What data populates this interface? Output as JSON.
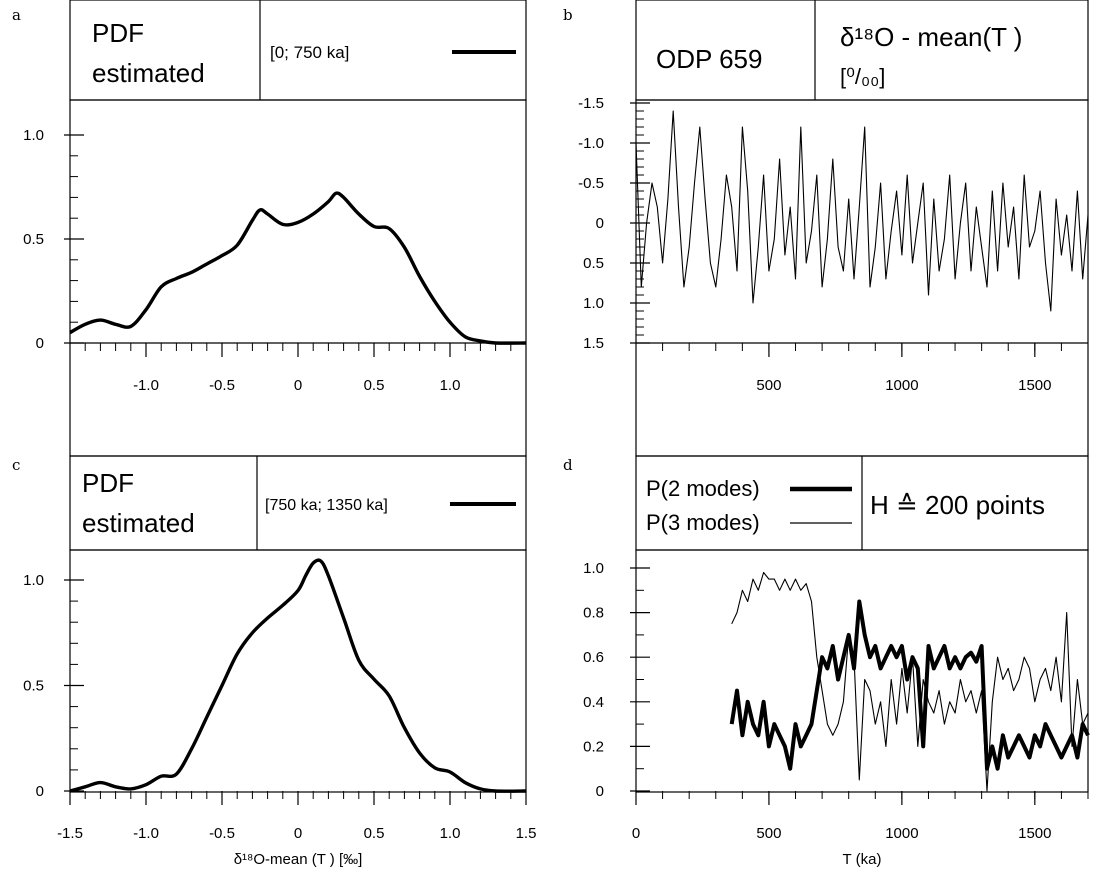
{
  "panels": [
    {
      "letter": "a",
      "header": {
        "line1": "PDF",
        "line2": "estimated",
        "legend": "[0; 750 ka]"
      }
    },
    {
      "letter": "b",
      "header": {
        "title": "ODP 659",
        "ylabel_line1": "δ¹⁸O - mean(T )",
        "ylabel_line2": "[⁰/₀₀]"
      }
    },
    {
      "letter": "c",
      "header": {
        "line1": "PDF",
        "line2": "estimated",
        "legend": "[750 ka; 1350 ka]"
      }
    },
    {
      "letter": "d",
      "header": {
        "legend1": "P(2 modes)",
        "legend2": "P(3 modes)",
        "note": "H ≙ 200 points"
      }
    }
  ],
  "x_label_bottom_left": "δ¹⁸O-mean (T ) [‰]",
  "x_label_bottom_right": "T (ka)",
  "chart_data": [
    {
      "panel": "a",
      "type": "line",
      "x": [
        -1.5,
        -1.4,
        -1.3,
        -1.2,
        -1.1,
        -1.0,
        -0.9,
        -0.8,
        -0.7,
        -0.6,
        -0.5,
        -0.4,
        -0.3,
        -0.25,
        -0.2,
        -0.1,
        0,
        0.1,
        0.2,
        0.25,
        0.3,
        0.4,
        0.5,
        0.6,
        0.7,
        0.8,
        0.9,
        1.0,
        1.1,
        1.2,
        1.3,
        1.5
      ],
      "y": [
        0.05,
        0.09,
        0.11,
        0.09,
        0.08,
        0.16,
        0.27,
        0.31,
        0.34,
        0.38,
        0.42,
        0.47,
        0.59,
        0.64,
        0.62,
        0.57,
        0.58,
        0.62,
        0.68,
        0.72,
        0.7,
        0.62,
        0.56,
        0.55,
        0.46,
        0.32,
        0.2,
        0.1,
        0.03,
        0.01,
        0.0,
        0.0
      ],
      "series_label": "[0; 750 ka]",
      "xlim": [
        -1.5,
        1.5
      ],
      "ylim": [
        0,
        1.0
      ],
      "xticks": [
        "-1.0",
        "-0.5",
        "0",
        "0.5",
        "1.0"
      ],
      "yticks": [
        "0",
        "0.5",
        "1.0"
      ]
    },
    {
      "panel": "b",
      "type": "line",
      "title": "ODP 659",
      "xlim": [
        0,
        1700
      ],
      "ylim": [
        1.5,
        -1.5
      ],
      "xticks": [
        "500",
        "1000",
        "1500"
      ],
      "yticks": [
        "-1.5",
        "-1.0",
        "-0.5",
        "0",
        "0.5",
        "1.0",
        "1.5"
      ],
      "x": [
        0,
        20,
        40,
        60,
        80,
        100,
        120,
        140,
        160,
        180,
        200,
        220,
        240,
        260,
        280,
        300,
        320,
        340,
        360,
        380,
        400,
        420,
        440,
        460,
        480,
        500,
        520,
        540,
        560,
        580,
        600,
        620,
        640,
        660,
        680,
        700,
        720,
        740,
        760,
        780,
        800,
        820,
        840,
        860,
        880,
        900,
        920,
        940,
        960,
        980,
        1000,
        1020,
        1040,
        1060,
        1080,
        1100,
        1120,
        1140,
        1160,
        1180,
        1200,
        1220,
        1240,
        1260,
        1280,
        1300,
        1320,
        1340,
        1360,
        1380,
        1400,
        1420,
        1440,
        1460,
        1480,
        1500,
        1520,
        1540,
        1560,
        1580,
        1600,
        1620,
        1640,
        1660,
        1680,
        1700
      ],
      "y": [
        -1.0,
        0.8,
        0.0,
        -0.5,
        -0.2,
        0.5,
        -0.3,
        -1.4,
        -0.2,
        0.8,
        0.3,
        -0.5,
        -1.2,
        -0.3,
        0.5,
        0.8,
        0.2,
        -0.6,
        -0.2,
        0.6,
        -1.2,
        -0.4,
        1.0,
        0.3,
        -0.6,
        0.6,
        0.2,
        -0.8,
        0.4,
        -0.2,
        0.7,
        -1.2,
        0.5,
        0.1,
        -0.6,
        0.8,
        0.2,
        -0.8,
        0.3,
        0.6,
        -0.3,
        0.7,
        -0.2,
        -1.2,
        0.8,
        0.3,
        -0.5,
        0.7,
        0.1,
        -0.4,
        0.4,
        -0.6,
        0.5,
        0.0,
        -0.5,
        0.9,
        -0.3,
        0.6,
        0.2,
        -0.6,
        0.7,
        0.0,
        -0.5,
        0.6,
        -0.2,
        0.3,
        0.8,
        -0.4,
        0.6,
        -0.5,
        0.3,
        -0.2,
        0.7,
        -0.6,
        0.3,
        0.1,
        -0.4,
        0.5,
        1.1,
        -0.3,
        0.4,
        -0.1,
        0.6,
        -0.4,
        0.7,
        -0.1
      ]
    },
    {
      "panel": "c",
      "type": "line",
      "x": [
        -1.5,
        -1.4,
        -1.3,
        -1.2,
        -1.1,
        -1.0,
        -0.9,
        -0.8,
        -0.7,
        -0.6,
        -0.5,
        -0.4,
        -0.3,
        -0.2,
        -0.1,
        0,
        0.05,
        0.1,
        0.15,
        0.2,
        0.3,
        0.4,
        0.5,
        0.6,
        0.7,
        0.8,
        0.9,
        1.0,
        1.1,
        1.2,
        1.3,
        1.5
      ],
      "y": [
        0.0,
        0.02,
        0.04,
        0.02,
        0.01,
        0.03,
        0.07,
        0.08,
        0.2,
        0.35,
        0.5,
        0.65,
        0.75,
        0.82,
        0.88,
        0.95,
        1.02,
        1.08,
        1.09,
        1.02,
        0.82,
        0.62,
        0.53,
        0.45,
        0.3,
        0.18,
        0.11,
        0.09,
        0.04,
        0.01,
        0.0,
        0.0
      ],
      "series_label": "[750 ka; 1350 ka]",
      "xlim": [
        -1.5,
        1.5
      ],
      "ylim": [
        0,
        1.0
      ],
      "xticks": [
        "-1.5",
        "-1.0",
        "-0.5",
        "0",
        "0.5",
        "1.0",
        "1.5"
      ],
      "yticks": [
        "0",
        "0.5",
        "1.0"
      ]
    },
    {
      "panel": "d",
      "type": "line",
      "xlim": [
        0,
        1700
      ],
      "ylim": [
        0,
        1.0
      ],
      "xticks": [
        "0",
        "500",
        "1000",
        "1500"
      ],
      "yticks": [
        "0",
        "0.2",
        "0.4",
        "0.6",
        "0.8",
        "1.0"
      ],
      "series": [
        {
          "name": "P(2 modes)",
          "x": [
            360,
            380,
            400,
            420,
            440,
            460,
            480,
            500,
            520,
            540,
            560,
            580,
            600,
            620,
            640,
            660,
            680,
            700,
            720,
            740,
            760,
            780,
            800,
            820,
            840,
            860,
            880,
            900,
            920,
            940,
            960,
            980,
            1000,
            1020,
            1040,
            1060,
            1080,
            1100,
            1120,
            1140,
            1160,
            1180,
            1200,
            1220,
            1240,
            1260,
            1280,
            1300,
            1320,
            1340,
            1360,
            1380,
            1400,
            1420,
            1440,
            1460,
            1480,
            1500,
            1520,
            1540,
            1560,
            1580,
            1600,
            1620,
            1640,
            1660,
            1680,
            1700
          ],
          "y": [
            0.3,
            0.45,
            0.25,
            0.4,
            0.3,
            0.25,
            0.4,
            0.2,
            0.3,
            0.25,
            0.2,
            0.1,
            0.3,
            0.2,
            0.25,
            0.3,
            0.45,
            0.6,
            0.55,
            0.65,
            0.5,
            0.6,
            0.7,
            0.55,
            0.85,
            0.7,
            0.6,
            0.65,
            0.55,
            0.6,
            0.65,
            0.6,
            0.65,
            0.5,
            0.6,
            0.55,
            0.2,
            0.65,
            0.55,
            0.6,
            0.65,
            0.55,
            0.6,
            0.55,
            0.6,
            0.62,
            0.58,
            0.65,
            0.1,
            0.2,
            0.1,
            0.25,
            0.15,
            0.2,
            0.25,
            0.2,
            0.15,
            0.25,
            0.2,
            0.3,
            0.25,
            0.2,
            0.15,
            0.2,
            0.25,
            0.15,
            0.3,
            0.25
          ]
        },
        {
          "name": "P(3 modes)",
          "x": [
            360,
            380,
            400,
            420,
            440,
            460,
            480,
            500,
            520,
            540,
            560,
            580,
            600,
            620,
            640,
            660,
            680,
            700,
            720,
            740,
            760,
            780,
            800,
            820,
            840,
            860,
            880,
            900,
            920,
            940,
            960,
            980,
            1000,
            1020,
            1040,
            1060,
            1080,
            1100,
            1120,
            1140,
            1160,
            1180,
            1200,
            1220,
            1240,
            1260,
            1280,
            1300,
            1320,
            1340,
            1360,
            1380,
            1400,
            1420,
            1440,
            1460,
            1480,
            1500,
            1520,
            1540,
            1560,
            1580,
            1600,
            1620,
            1640,
            1660,
            1680,
            1700
          ],
          "y": [
            0.75,
            0.8,
            0.9,
            0.85,
            0.95,
            0.9,
            0.98,
            0.95,
            0.95,
            0.9,
            0.95,
            0.9,
            0.95,
            0.9,
            0.93,
            0.85,
            0.6,
            0.45,
            0.3,
            0.25,
            0.3,
            0.4,
            0.7,
            0.6,
            0.05,
            0.5,
            0.45,
            0.3,
            0.4,
            0.2,
            0.5,
            0.3,
            0.55,
            0.35,
            0.6,
            0.2,
            0.5,
            0.4,
            0.35,
            0.45,
            0.3,
            0.4,
            0.35,
            0.5,
            0.4,
            0.45,
            0.35,
            0.45,
            0.0,
            0.4,
            0.6,
            0.5,
            0.55,
            0.45,
            0.5,
            0.6,
            0.55,
            0.4,
            0.5,
            0.55,
            0.45,
            0.6,
            0.4,
            0.8,
            0.2,
            0.5,
            0.3,
            0.35
          ]
        }
      ]
    }
  ]
}
